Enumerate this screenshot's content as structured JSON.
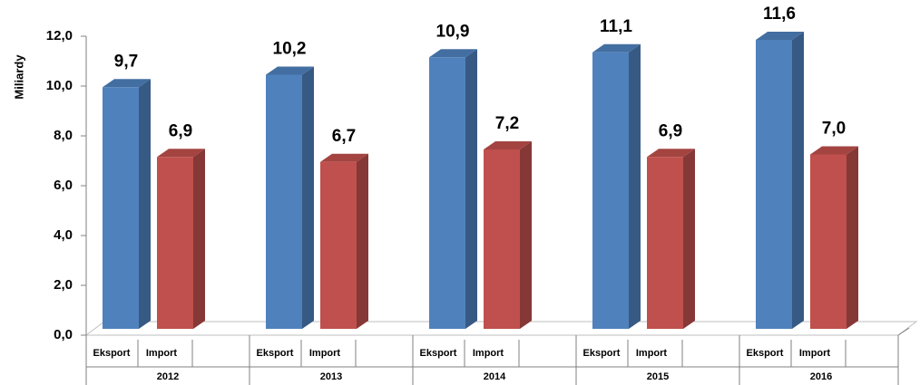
{
  "chart_data": {
    "type": "bar",
    "y_label": "Miliardy",
    "categories": [
      "2012",
      "2013",
      "2014",
      "2015",
      "2016"
    ],
    "series": [
      {
        "name": "Eksport",
        "color": "#4f81bd",
        "values": [
          9.7,
          10.2,
          10.9,
          11.1,
          11.6
        ],
        "value_labels": [
          "9,7",
          "10,2",
          "10,9",
          "11,1",
          "11,6"
        ]
      },
      {
        "name": "Import",
        "color": "#c0504d",
        "values": [
          6.9,
          6.7,
          7.2,
          6.9,
          7.0
        ],
        "value_labels": [
          "6,9",
          "6,7",
          "7,2",
          "6,9",
          "7,0"
        ]
      }
    ],
    "ylim": [
      0,
      12
    ],
    "yticks": [
      {
        "value": 0,
        "label": "0,0"
      },
      {
        "value": 2,
        "label": "2,0"
      },
      {
        "value": 4,
        "label": "4,0"
      },
      {
        "value": 6,
        "label": "6,0"
      },
      {
        "value": 8,
        "label": "8,0"
      },
      {
        "value": 10,
        "label": "10,0"
      },
      {
        "value": 12,
        "label": "12,0"
      }
    ]
  }
}
